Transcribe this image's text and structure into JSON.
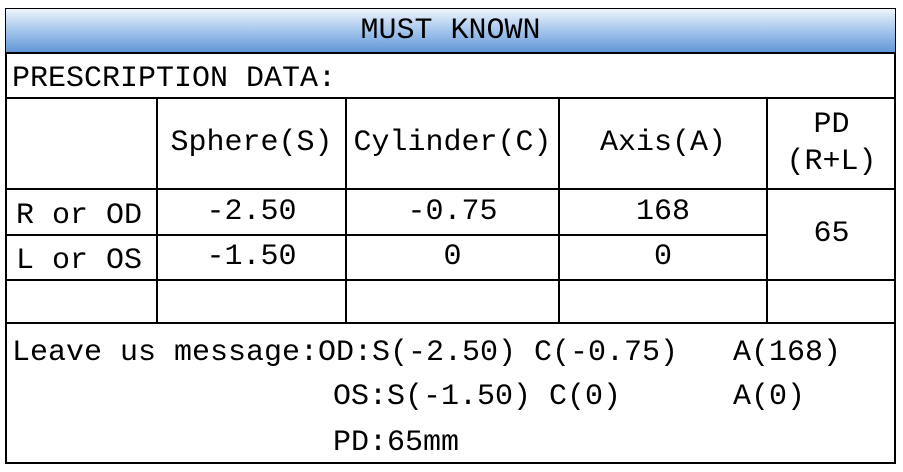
{
  "title": "MUST KNOWN",
  "section_label": "PRESCRIPTION DATA:",
  "columns": [
    "",
    "Sphere(S)",
    "Cylinder(C)",
    "Axis(A)",
    "PD\n(R+L)"
  ],
  "rows": [
    {
      "eye": "R or OD",
      "sphere": "-2.50",
      "cylinder": "-0.75",
      "axis": "168"
    },
    {
      "eye": "L or OS",
      "sphere": "-1.50",
      "cylinder": "0",
      "axis": "0"
    }
  ],
  "pd_value": "65",
  "message": {
    "label": "Leave us message:",
    "line1": "OD:S(-2.50) C(-0.75)",
    "line1_axis": "A(168)",
    "line2": "OS:S(-1.50) C(0)",
    "line2_axis": "A(0)",
    "line3": "PD:65mm"
  },
  "colors": {
    "header_gradient_top": "#eef4fc",
    "header_gradient_bottom": "#5f95d6",
    "border": "#000000"
  }
}
